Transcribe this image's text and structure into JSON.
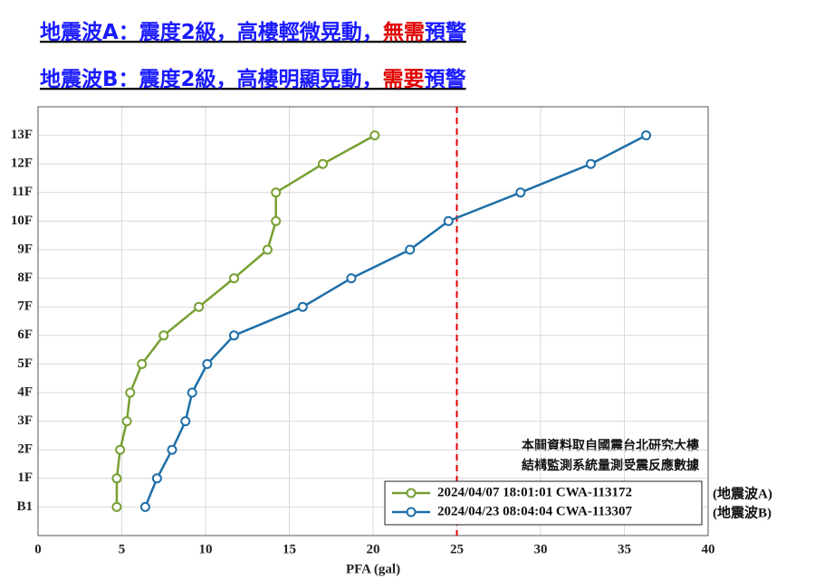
{
  "chart_data": {
    "type": "line",
    "orientation": "horizontal",
    "title_lines": [
      [
        "地震波A：震度2級，高樓輕微晃動，",
        "無需",
        "預警"
      ],
      [
        "地震波B：震度2級，高樓明顯晃動，",
        "需要",
        "預警"
      ]
    ],
    "title_color": "#1a1aff",
    "highlight_color": "#e00000",
    "xlabel": "PFA (gal)",
    "categories": [
      "B1",
      "1F",
      "2F",
      "3F",
      "4F",
      "5F",
      "6F",
      "7F",
      "8F",
      "9F",
      "10F",
      "11F",
      "12F",
      "13F"
    ],
    "series": [
      {
        "name": "2024/04/07 18:01:01 CWA-113172",
        "tag": "(地震波A)",
        "color": "#77a033",
        "values": [
          4.7,
          4.7,
          4.9,
          5.3,
          5.5,
          6.2,
          7.5,
          9.6,
          11.7,
          13.7,
          14.2,
          14.2,
          17.0,
          20.1
        ]
      },
      {
        "name": "2024/04/23 08:04:04 CWA-113307",
        "tag": "(地震波B)",
        "color": "#1f6fa8",
        "values": [
          6.4,
          7.1,
          8.0,
          8.8,
          9.2,
          10.1,
          11.7,
          15.8,
          18.7,
          22.2,
          24.5,
          28.8,
          33.0,
          36.3
        ]
      }
    ],
    "xlim": [
      0,
      40
    ],
    "xticks": [
      0,
      5,
      10,
      15,
      20,
      25,
      30,
      35,
      40
    ],
    "threshold": 25,
    "threshold_color": "#e00000",
    "annotation": [
      "本圖資料取自國震台北研究大樓",
      "結構監測系統量測受震反應數據"
    ],
    "grid": true
  }
}
